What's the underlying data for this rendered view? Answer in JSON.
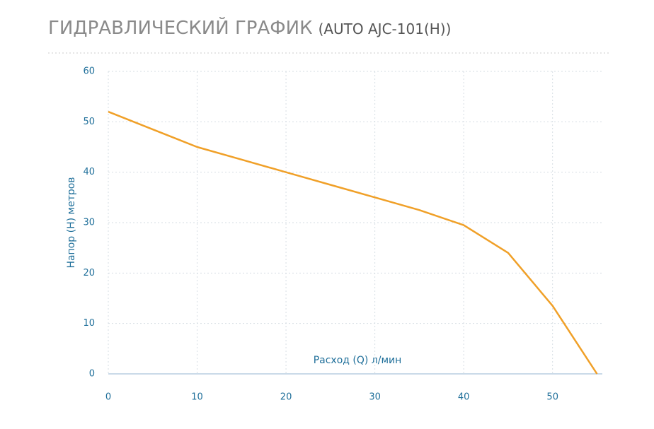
{
  "chart_data": {
    "type": "line",
    "title": "ГИДРАВЛИЧЕСКИЙ ГРАФИК",
    "subtitle": "(AUTO AJC-101(H))",
    "x_label": "Расход (Q) л/мин",
    "y_label": "Напор (H) метров",
    "x": [
      0,
      5,
      10,
      15,
      20,
      25,
      30,
      35,
      40,
      45,
      50,
      55
    ],
    "series": [
      {
        "name": "AUTO AJC-101(H)",
        "color": "#f0a028",
        "values": [
          52,
          48.5,
          45,
          42.5,
          40,
          37.5,
          35,
          32.5,
          29.5,
          24,
          13.5,
          0
        ]
      }
    ],
    "xlim": [
      0,
      55.6
    ],
    "xticks": [
      0,
      10,
      20,
      30,
      40,
      50
    ],
    "ylim": [
      0,
      60
    ],
    "yticks": [
      0,
      10,
      20,
      30,
      40,
      50,
      60
    ],
    "grid": true
  }
}
